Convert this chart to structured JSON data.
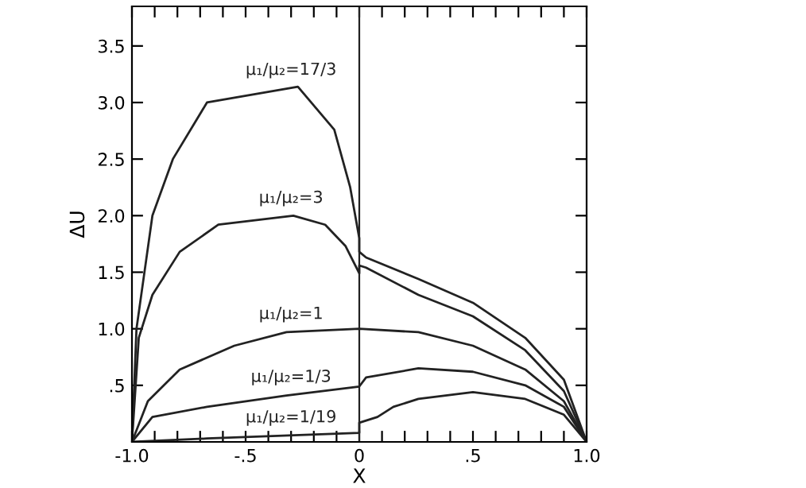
{
  "chart_data": {
    "type": "line",
    "xlabel": "X",
    "ylabel": "ΔU",
    "xlim": [
      -1.0,
      1.0
    ],
    "ylim": [
      0,
      3.85
    ],
    "xticks": [
      {
        "value": -1.0,
        "label": "-1.0"
      },
      {
        "value": -0.9,
        "label": null
      },
      {
        "value": -0.8,
        "label": null
      },
      {
        "value": -0.7,
        "label": null
      },
      {
        "value": -0.6,
        "label": null
      },
      {
        "value": -0.5,
        "label": "-.5"
      },
      {
        "value": -0.4,
        "label": null
      },
      {
        "value": -0.3,
        "label": null
      },
      {
        "value": -0.2,
        "label": null
      },
      {
        "value": -0.1,
        "label": null
      },
      0,
      {
        "value": 0.1,
        "label": null
      },
      {
        "value": 0.2,
        "label": null
      },
      {
        "value": 0.3,
        "label": null
      },
      {
        "value": 0.4,
        "label": null
      },
      {
        "value": 0.5,
        "label": ".5"
      },
      {
        "value": 0.6,
        "label": null
      },
      {
        "value": 0.7,
        "label": null
      },
      {
        "value": 0.8,
        "label": null
      },
      {
        "value": 0.9,
        "label": null
      },
      {
        "value": 1.0,
        "label": "1.0"
      }
    ],
    "yticks": [
      {
        "value": 0.5,
        "label": ".5"
      },
      {
        "value": 1.0,
        "label": "1.0"
      },
      {
        "value": 1.5,
        "label": "1.5"
      },
      {
        "value": 2.0,
        "label": "2.0"
      },
      {
        "value": 2.5,
        "label": "2.5"
      },
      {
        "value": 3.0,
        "label": "3.0"
      },
      {
        "value": 3.5,
        "label": "3.5"
      }
    ],
    "grid": false,
    "legend": false,
    "marker": "none",
    "line_style": "solid",
    "series": [
      {
        "name": "μ₁/μ₂=17/3",
        "color": "#222222",
        "x": [
          -1.0,
          -0.98,
          -0.91,
          -0.82,
          -0.67,
          -0.27,
          -0.11,
          -0.04,
          0,
          0,
          0.03,
          0.26,
          0.5,
          0.73,
          0.9,
          1.0
        ],
        "values": [
          0,
          1.0,
          2.0,
          2.5,
          3.0,
          3.14,
          2.76,
          2.25,
          1.8,
          1.68,
          1.63,
          1.44,
          1.23,
          0.92,
          0.55,
          0
        ]
      },
      {
        "name": "μ₁/μ₂=3",
        "color": "#222222",
        "x": [
          -1.0,
          -0.97,
          -0.91,
          -0.79,
          -0.62,
          -0.29,
          -0.15,
          -0.06,
          0,
          0,
          0.03,
          0.26,
          0.5,
          0.73,
          0.9,
          1.0
        ],
        "values": [
          0,
          0.92,
          1.3,
          1.68,
          1.92,
          2.0,
          1.92,
          1.73,
          1.49,
          1.56,
          1.54,
          1.3,
          1.11,
          0.81,
          0.45,
          0
        ]
      },
      {
        "name": "μ₁/μ₂=1",
        "color": "#222222",
        "x": [
          -1.0,
          -0.93,
          -0.79,
          -0.55,
          -0.32,
          0,
          0.26,
          0.5,
          0.73,
          0.9,
          1.0
        ],
        "values": [
          0,
          0.36,
          0.64,
          0.85,
          0.97,
          1.0,
          0.97,
          0.85,
          0.64,
          0.36,
          0
        ]
      },
      {
        "name": "μ₁/μ₂=1/3",
        "color": "#222222",
        "x": [
          -1.0,
          -0.91,
          -0.67,
          -0.32,
          0,
          0.03,
          0.26,
          0.5,
          0.73,
          0.9,
          1.0
        ],
        "values": [
          0,
          0.22,
          0.31,
          0.41,
          0.49,
          0.57,
          0.65,
          0.62,
          0.5,
          0.31,
          0
        ]
      },
      {
        "name": "μ₁/μ₂=1/19",
        "color": "#222222",
        "x": [
          -1.0,
          -0.67,
          0,
          0,
          0.08,
          0.15,
          0.26,
          0.5,
          0.73,
          0.9,
          1.0
        ],
        "values": [
          0,
          0.03,
          0.08,
          0.17,
          0.22,
          0.31,
          0.38,
          0.44,
          0.38,
          0.24,
          0
        ]
      }
    ],
    "ref_lines": [
      {
        "axis": "x",
        "value": 0,
        "color": "#222222"
      }
    ]
  }
}
